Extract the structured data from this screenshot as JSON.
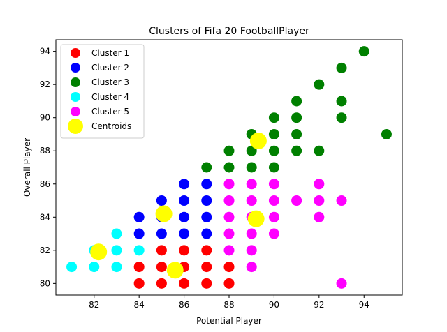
{
  "chart_data": {
    "type": "scatter",
    "title": "Clusters of Fifa 20 FootballPlayer",
    "xlabel": "Potential Player",
    "ylabel": "Overall Player",
    "xlim": [
      80.3,
      95.7
    ],
    "ylim": [
      79.3,
      94.7
    ],
    "xticks": [
      82,
      84,
      86,
      88,
      90,
      92,
      94
    ],
    "yticks": [
      80,
      82,
      84,
      86,
      88,
      90,
      92,
      94
    ],
    "grid": false,
    "legend_position": "upper-left",
    "series": [
      {
        "name": "Cluster 1",
        "color": "#ff0000",
        "points": [
          [
            84,
            80
          ],
          [
            84,
            81
          ],
          [
            85,
            80
          ],
          [
            85,
            81
          ],
          [
            85,
            82
          ],
          [
            86,
            80
          ],
          [
            86,
            81
          ],
          [
            86,
            82
          ],
          [
            87,
            80
          ],
          [
            87,
            81
          ],
          [
            87,
            82
          ],
          [
            88,
            80
          ],
          [
            88,
            81
          ]
        ]
      },
      {
        "name": "Cluster 2",
        "color": "#0000ff",
        "points": [
          [
            84,
            83
          ],
          [
            84,
            84
          ],
          [
            85,
            83
          ],
          [
            85,
            84
          ],
          [
            85,
            85
          ],
          [
            86,
            83
          ],
          [
            86,
            84
          ],
          [
            86,
            85
          ],
          [
            86,
            86
          ],
          [
            87,
            83
          ],
          [
            87,
            84
          ],
          [
            87,
            85
          ],
          [
            87,
            86
          ]
        ]
      },
      {
        "name": "Cluster 3",
        "color": "#008000",
        "points": [
          [
            87,
            87
          ],
          [
            88,
            87
          ],
          [
            88,
            88
          ],
          [
            89,
            87
          ],
          [
            89,
            88
          ],
          [
            89,
            89
          ],
          [
            90,
            87
          ],
          [
            90,
            88
          ],
          [
            90,
            89
          ],
          [
            90,
            90
          ],
          [
            91,
            88
          ],
          [
            91,
            89
          ],
          [
            91,
            90
          ],
          [
            91,
            91
          ],
          [
            92,
            88
          ],
          [
            92,
            92
          ],
          [
            93,
            90
          ],
          [
            93,
            91
          ],
          [
            93,
            93
          ],
          [
            94,
            94
          ],
          [
            95,
            89
          ]
        ]
      },
      {
        "name": "Cluster 4",
        "color": "#00ffff",
        "points": [
          [
            81,
            81
          ],
          [
            82,
            81
          ],
          [
            82,
            82
          ],
          [
            83,
            81
          ],
          [
            83,
            82
          ],
          [
            83,
            83
          ],
          [
            84,
            82
          ]
        ]
      },
      {
        "name": "Cluster 5",
        "color": "#ff00ff",
        "points": [
          [
            88,
            82
          ],
          [
            88,
            83
          ],
          [
            88,
            84
          ],
          [
            88,
            85
          ],
          [
            88,
            86
          ],
          [
            89,
            81
          ],
          [
            89,
            82
          ],
          [
            89,
            83
          ],
          [
            89,
            84
          ],
          [
            89,
            85
          ],
          [
            89,
            86
          ],
          [
            90,
            83
          ],
          [
            90,
            84
          ],
          [
            90,
            85
          ],
          [
            90,
            86
          ],
          [
            91,
            85
          ],
          [
            92,
            84
          ],
          [
            92,
            85
          ],
          [
            92,
            86
          ],
          [
            93,
            80
          ],
          [
            93,
            85
          ]
        ]
      },
      {
        "name": "Centroids",
        "color": "#ffff00",
        "points": [
          [
            82.2,
            81.9
          ],
          [
            85.1,
            84.2
          ],
          [
            85.6,
            80.8
          ],
          [
            89.3,
            88.6
          ],
          [
            89.2,
            83.9
          ]
        ]
      }
    ]
  }
}
